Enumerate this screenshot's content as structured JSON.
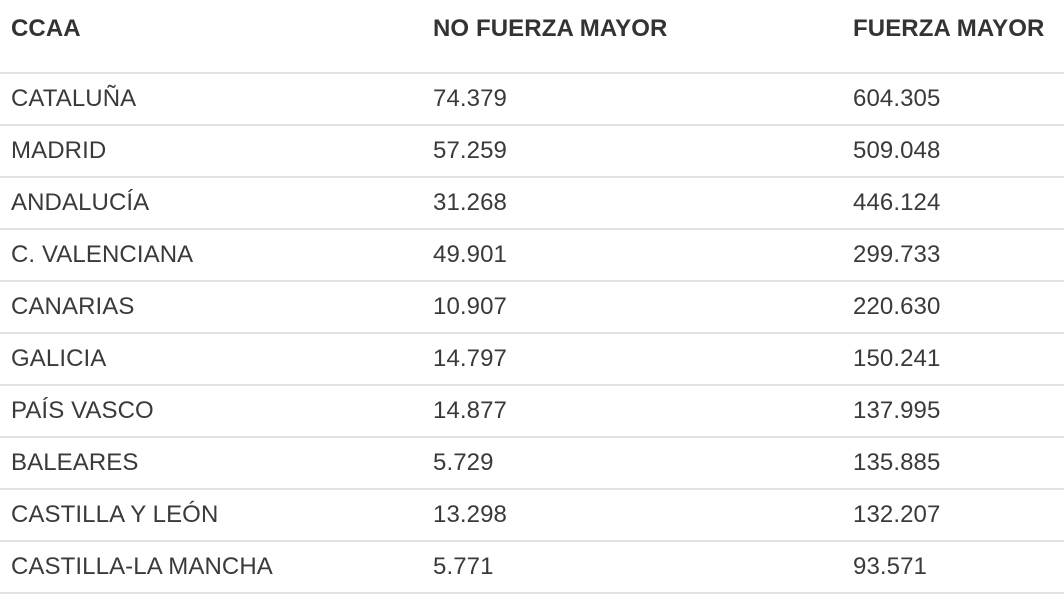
{
  "chart_data": {
    "type": "table",
    "columns": [
      "CCAA",
      "NO FUERZA MAYOR",
      "FUERZA MAYOR"
    ],
    "rows": [
      [
        "CATALUÑA",
        "74.379",
        "604.305"
      ],
      [
        "MADRID",
        "57.259",
        "509.048"
      ],
      [
        "ANDALUCÍA",
        "31.268",
        "446.124"
      ],
      [
        "C. VALENCIANA",
        "49.901",
        "299.733"
      ],
      [
        "CANARIAS",
        "10.907",
        "220.630"
      ],
      [
        "GALICIA",
        "14.797",
        "150.241"
      ],
      [
        "PAÍS VASCO",
        "14.877",
        "137.995"
      ],
      [
        "BALEARES",
        "5.729",
        "135.885"
      ],
      [
        "CASTILLA Y LEÓN",
        "13.298",
        "132.207"
      ],
      [
        "CASTILLA-LA MANCHA",
        "5.771",
        "93.571"
      ]
    ]
  }
}
